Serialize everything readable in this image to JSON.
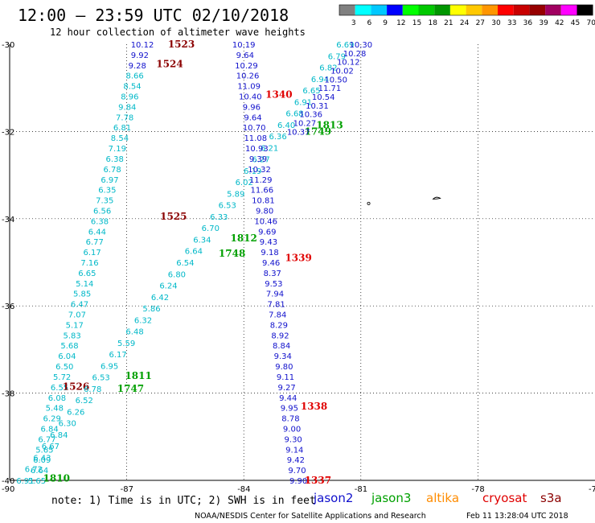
{
  "header": {
    "title": "12:00 – 23:59 UTC 02/10/2018",
    "subtitle": "12 hour collection of altimeter wave heights"
  },
  "colorbar": {
    "labels": [
      "3",
      "6",
      "9",
      "12",
      "15",
      "18",
      "21",
      "24",
      "27",
      "30",
      "33",
      "36",
      "39",
      "42",
      "45",
      "70",
      "(ft)"
    ],
    "colors": [
      "#808080",
      "#00ffff",
      "#00c8ff",
      "#0000ff",
      "#00ff00",
      "#00c800",
      "#009600",
      "#ffff00",
      "#ffc800",
      "#ff9600",
      "#ff0000",
      "#c80000",
      "#960000",
      "#a00060",
      "#ff00ff",
      "#000000"
    ]
  },
  "note": "note:  1) Time is in UTC;  2) SWH is in feet",
  "legend": [
    {
      "name": "jason2",
      "color": "#1010cc"
    },
    {
      "name": "jason3",
      "color": "#00a000"
    },
    {
      "name": "altika",
      "color": "#ff8c00"
    },
    {
      "name": "cryosat",
      "color": "#e00000"
    },
    {
      "name": "s3a",
      "color": "#8b0000"
    }
  ],
  "credit_left": "NOAA/NESDIS Center for Satellite Applications and Research",
  "credit_right": "Feb 11 13:28:04 UTC 2018",
  "chart_data": {
    "type": "scatter",
    "title": "12 hour collection of altimeter wave heights",
    "units": "ft",
    "xlim": [
      -90,
      -75
    ],
    "ylim": [
      -40,
      -30
    ],
    "x_ticks": [
      -90,
      -87,
      -84,
      -81,
      -78,
      -75
    ],
    "y_ticks": [
      -30,
      -32,
      -34,
      -36,
      -38,
      -40
    ],
    "x_tick_labels": [
      "-90",
      "-87",
      "-84",
      "-81",
      "-78",
      "-75"
    ],
    "y_tick_labels": [
      "-30",
      "-32",
      "-34",
      "-36",
      "-38",
      "-40"
    ],
    "grid": true,
    "tracks": [
      {
        "satellite": "s3a",
        "color": "#00b8c8",
        "start": [
          -86.6,
          -30.0
        ],
        "end": [
          -89.3,
          -40.0
        ],
        "times": [
          {
            "label": "1525",
            "lon": -85.8,
            "lat": -33.95,
            "color": "#8b0000"
          },
          {
            "label": "1526",
            "lon": -88.3,
            "lat": -37.85,
            "color": "#8b0000"
          }
        ],
        "values": [
          "10.12",
          "9.92",
          "9.28",
          "8.66",
          "8.54",
          "8.96",
          "9.84",
          "7.78",
          "6.81",
          "8.54",
          "7.19",
          "6.38",
          "6.78",
          "6.97",
          "6.35",
          "7.35",
          "6.56",
          "6.38",
          "6.44",
          "6.77",
          "6.17",
          "7.16",
          "6.65",
          "5.14",
          "5.85",
          "6.47",
          "7.07",
          "5.17",
          "5.83",
          "5.68",
          "6.04",
          "6.50",
          "5.72",
          "6.55",
          "6.08",
          "5.48",
          "6.29",
          "6.84",
          "6.77",
          "5.65",
          "6.09",
          "6.64",
          "5.65"
        ],
        "value_colors": [
          "#1010cc",
          "#1010cc",
          "#1010cc"
        ]
      },
      {
        "satellite": "s3a",
        "color": "#00b8c8",
        "start": [
          -81.4,
          -30.0
        ],
        "end": [
          -89.6,
          -40.0
        ],
        "times": [
          {
            "label": "1523",
            "lon": -85.6,
            "lat": -30.0,
            "color": "#8b0000"
          },
          {
            "label": "1524",
            "lon": -85.9,
            "lat": -30.45,
            "color": "#8b0000"
          }
        ],
        "values": [
          "6.69",
          "6.79",
          "6.82",
          "6.94",
          "6.65",
          "6.91",
          "6.68",
          "6.40",
          "6.36",
          "6.21",
          "6.27",
          "6.19",
          "6.02",
          "5.89",
          "6.53",
          "6.33",
          "6.70",
          "6.34",
          "6.64",
          "6.54",
          "6.80",
          "6.24",
          "6.42",
          "5.86",
          "6.32",
          "6.48",
          "5.59",
          "6.17",
          "6.95",
          "6.53",
          "6.78",
          "6.52",
          "6.26",
          "6.30",
          "6.84",
          "6.67",
          "6.43",
          "6.72",
          "6.91"
        ]
      },
      {
        "satellite": "jason2",
        "color": "#1010cc",
        "start": [
          -84.0,
          -30.0
        ],
        "end": [
          -82.6,
          -40.0
        ],
        "times": [
          {
            "label": "1340",
            "lon": -83.1,
            "lat": -31.15,
            "color": "#e00000"
          },
          {
            "label": "1339",
            "lon": -82.6,
            "lat": -34.9,
            "color": "#e00000"
          },
          {
            "label": "1338",
            "lon": -82.2,
            "lat": -38.3,
            "color": "#e00000"
          },
          {
            "label": "1337",
            "lon": -82.1,
            "lat": -40.0,
            "color": "#e00000"
          }
        ],
        "values": [
          "10.19",
          "9.64",
          "10.29",
          "10.26",
          "11.09",
          "10.40",
          "9.96",
          "9.64",
          "10.70",
          "11.08",
          "10.93",
          "9.39",
          "10.32",
          "11.29",
          "11.66",
          "10.81",
          "9.80",
          "10.46",
          "9.69",
          "9.43",
          "9.18",
          "9.46",
          "8.37",
          "9.53",
          "7.94",
          "7.81",
          "7.84",
          "8.29",
          "8.92",
          "8.84",
          "9.34",
          "9.80",
          "9.11",
          "9.27",
          "9.44",
          "9.95",
          "8.78",
          "9.00",
          "9.30",
          "9.14",
          "9.42",
          "9.70",
          "9.90"
        ]
      },
      {
        "satellite": "jason3",
        "color": "#00a000",
        "times": [
          {
            "label": "1813",
            "lon": -81.8,
            "lat": -31.85,
            "color": "#00a000"
          },
          {
            "label": "1749",
            "lon": -82.1,
            "lat": -32.0,
            "color": "#00a000"
          },
          {
            "label": "1812",
            "lon": -84.0,
            "lat": -34.45,
            "color": "#00a000"
          },
          {
            "label": "1748",
            "lon": -84.3,
            "lat": -34.8,
            "color": "#00a000"
          },
          {
            "label": "1811",
            "lon": -86.7,
            "lat": -37.6,
            "color": "#00a000"
          },
          {
            "label": "1747",
            "lon": -86.9,
            "lat": -37.9,
            "color": "#00a000"
          },
          {
            "label": "1810",
            "lon": -88.8,
            "lat": -39.95,
            "color": "#00a000"
          }
        ]
      },
      {
        "satellite": "jason2",
        "color": "#1010cc",
        "start": [
          -81.0,
          -30.0
        ],
        "end": [
          -82.6,
          -32.0
        ],
        "values": [
          "10.30",
          "10.28",
          "10.12",
          "10.02",
          "10.50",
          "11.71",
          "10.54",
          "10.31",
          "10.36",
          "10.27",
          "10.37"
        ]
      }
    ]
  }
}
